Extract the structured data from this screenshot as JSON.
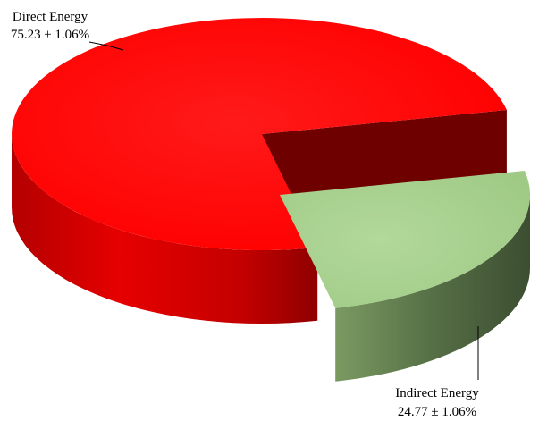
{
  "chart_data": {
    "type": "pie",
    "style": "3d-exploded",
    "slices": [
      {
        "name": "Direct Energy",
        "value": 75.23,
        "label_line1": "Direct Energy",
        "label_line2": "75.23 ± 1.06%",
        "color": "#ff0000"
      },
      {
        "name": "Indirect Energy",
        "value": 24.77,
        "label_line1": "Indirect Energy",
        "label_line2": "24.77 ± 1.06%",
        "color": "#a9d08e"
      }
    ]
  }
}
